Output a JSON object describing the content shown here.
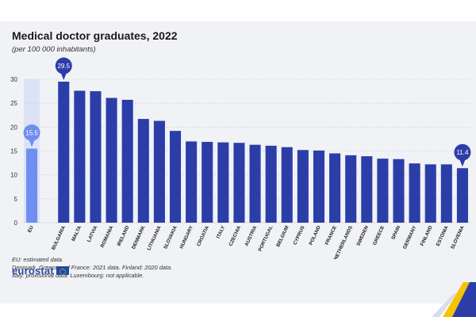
{
  "chart_data": {
    "type": "bar",
    "title": "Medical doctor graduates, 2022",
    "subtitle": "(per 100 000 inhabitants)",
    "categories": [
      "EU",
      "BULGARIA",
      "MALTA",
      "LATVIA",
      "ROMANIA",
      "IRELAND",
      "DENMARK",
      "LITHUANIA",
      "SLOVAKIA",
      "HUNGARY",
      "CROATIA",
      "ITALY",
      "CZECHIA",
      "AUSTRIA",
      "PORTUGAL",
      "BELGIUM",
      "CYPRUS",
      "POLAND",
      "FRANCE",
      "NETHERLANDS",
      "SWEDEN",
      "GREECE",
      "SPAIN",
      "GERMANY",
      "FINLAND",
      "ESTONIA",
      "SLOVENIA"
    ],
    "values": [
      15.5,
      29.5,
      27.6,
      27.5,
      26.1,
      25.7,
      21.7,
      21.3,
      19.2,
      17.0,
      16.9,
      16.8,
      16.7,
      16.3,
      16.1,
      15.8,
      15.2,
      15.1,
      14.5,
      14.1,
      13.9,
      13.4,
      13.3,
      12.4,
      12.2,
      12.2,
      11.4
    ],
    "ylim": [
      0,
      30
    ],
    "yticks": [
      0,
      5,
      10,
      15,
      20,
      25,
      30
    ],
    "callouts": [
      {
        "category": "EU",
        "label": "15.5"
      },
      {
        "category": "BULGARIA",
        "label": "29.5"
      },
      {
        "category": "SLOVENIA",
        "label": "11.4"
      }
    ],
    "grid": true,
    "colors": {
      "eu": "#6f8ff0",
      "countries": "#2b3ea8",
      "eu_band": "#dde3f7",
      "callout": "#2b3ea8",
      "callout_eu": "#6f8ff0"
    }
  },
  "notes": [
    "EU: estimated data.",
    "Denmark, Greece and France: 2021 data. Finland: 2020 data.",
    "Italy: provisional data. Luxembourg: not applicable."
  ],
  "brand": {
    "logo_text": "eurostat",
    "flag_icon": "eu-flag-icon"
  }
}
